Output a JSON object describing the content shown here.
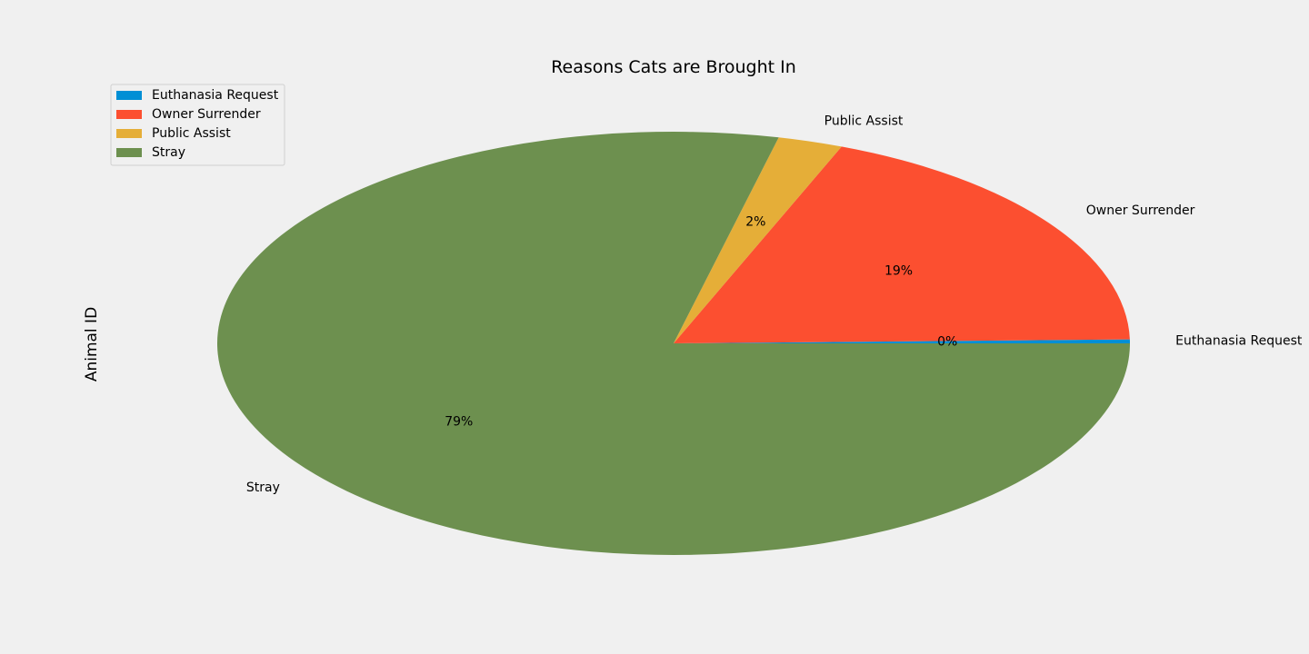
{
  "chart_data": {
    "type": "pie",
    "title": "Reasons Cats are Brought In",
    "ylabel": "Animal ID",
    "categories": [
      "Euthanasia Request",
      "Owner Surrender",
      "Public Assist",
      "Stray"
    ],
    "values": [
      0.3,
      18.7,
      2.3,
      78.7
    ],
    "percent_labels": [
      "0%",
      "19%",
      "2%",
      "79%"
    ],
    "colors": [
      "#008fd5",
      "#fc4f30",
      "#e5ae38",
      "#6d904f"
    ],
    "start_angle_deg": 0,
    "direction": "counterclockwise",
    "legend": {
      "placement": "upper-left",
      "entries": [
        "Euthanasia Request",
        "Owner Surrender",
        "Public Assist",
        "Stray"
      ]
    }
  }
}
